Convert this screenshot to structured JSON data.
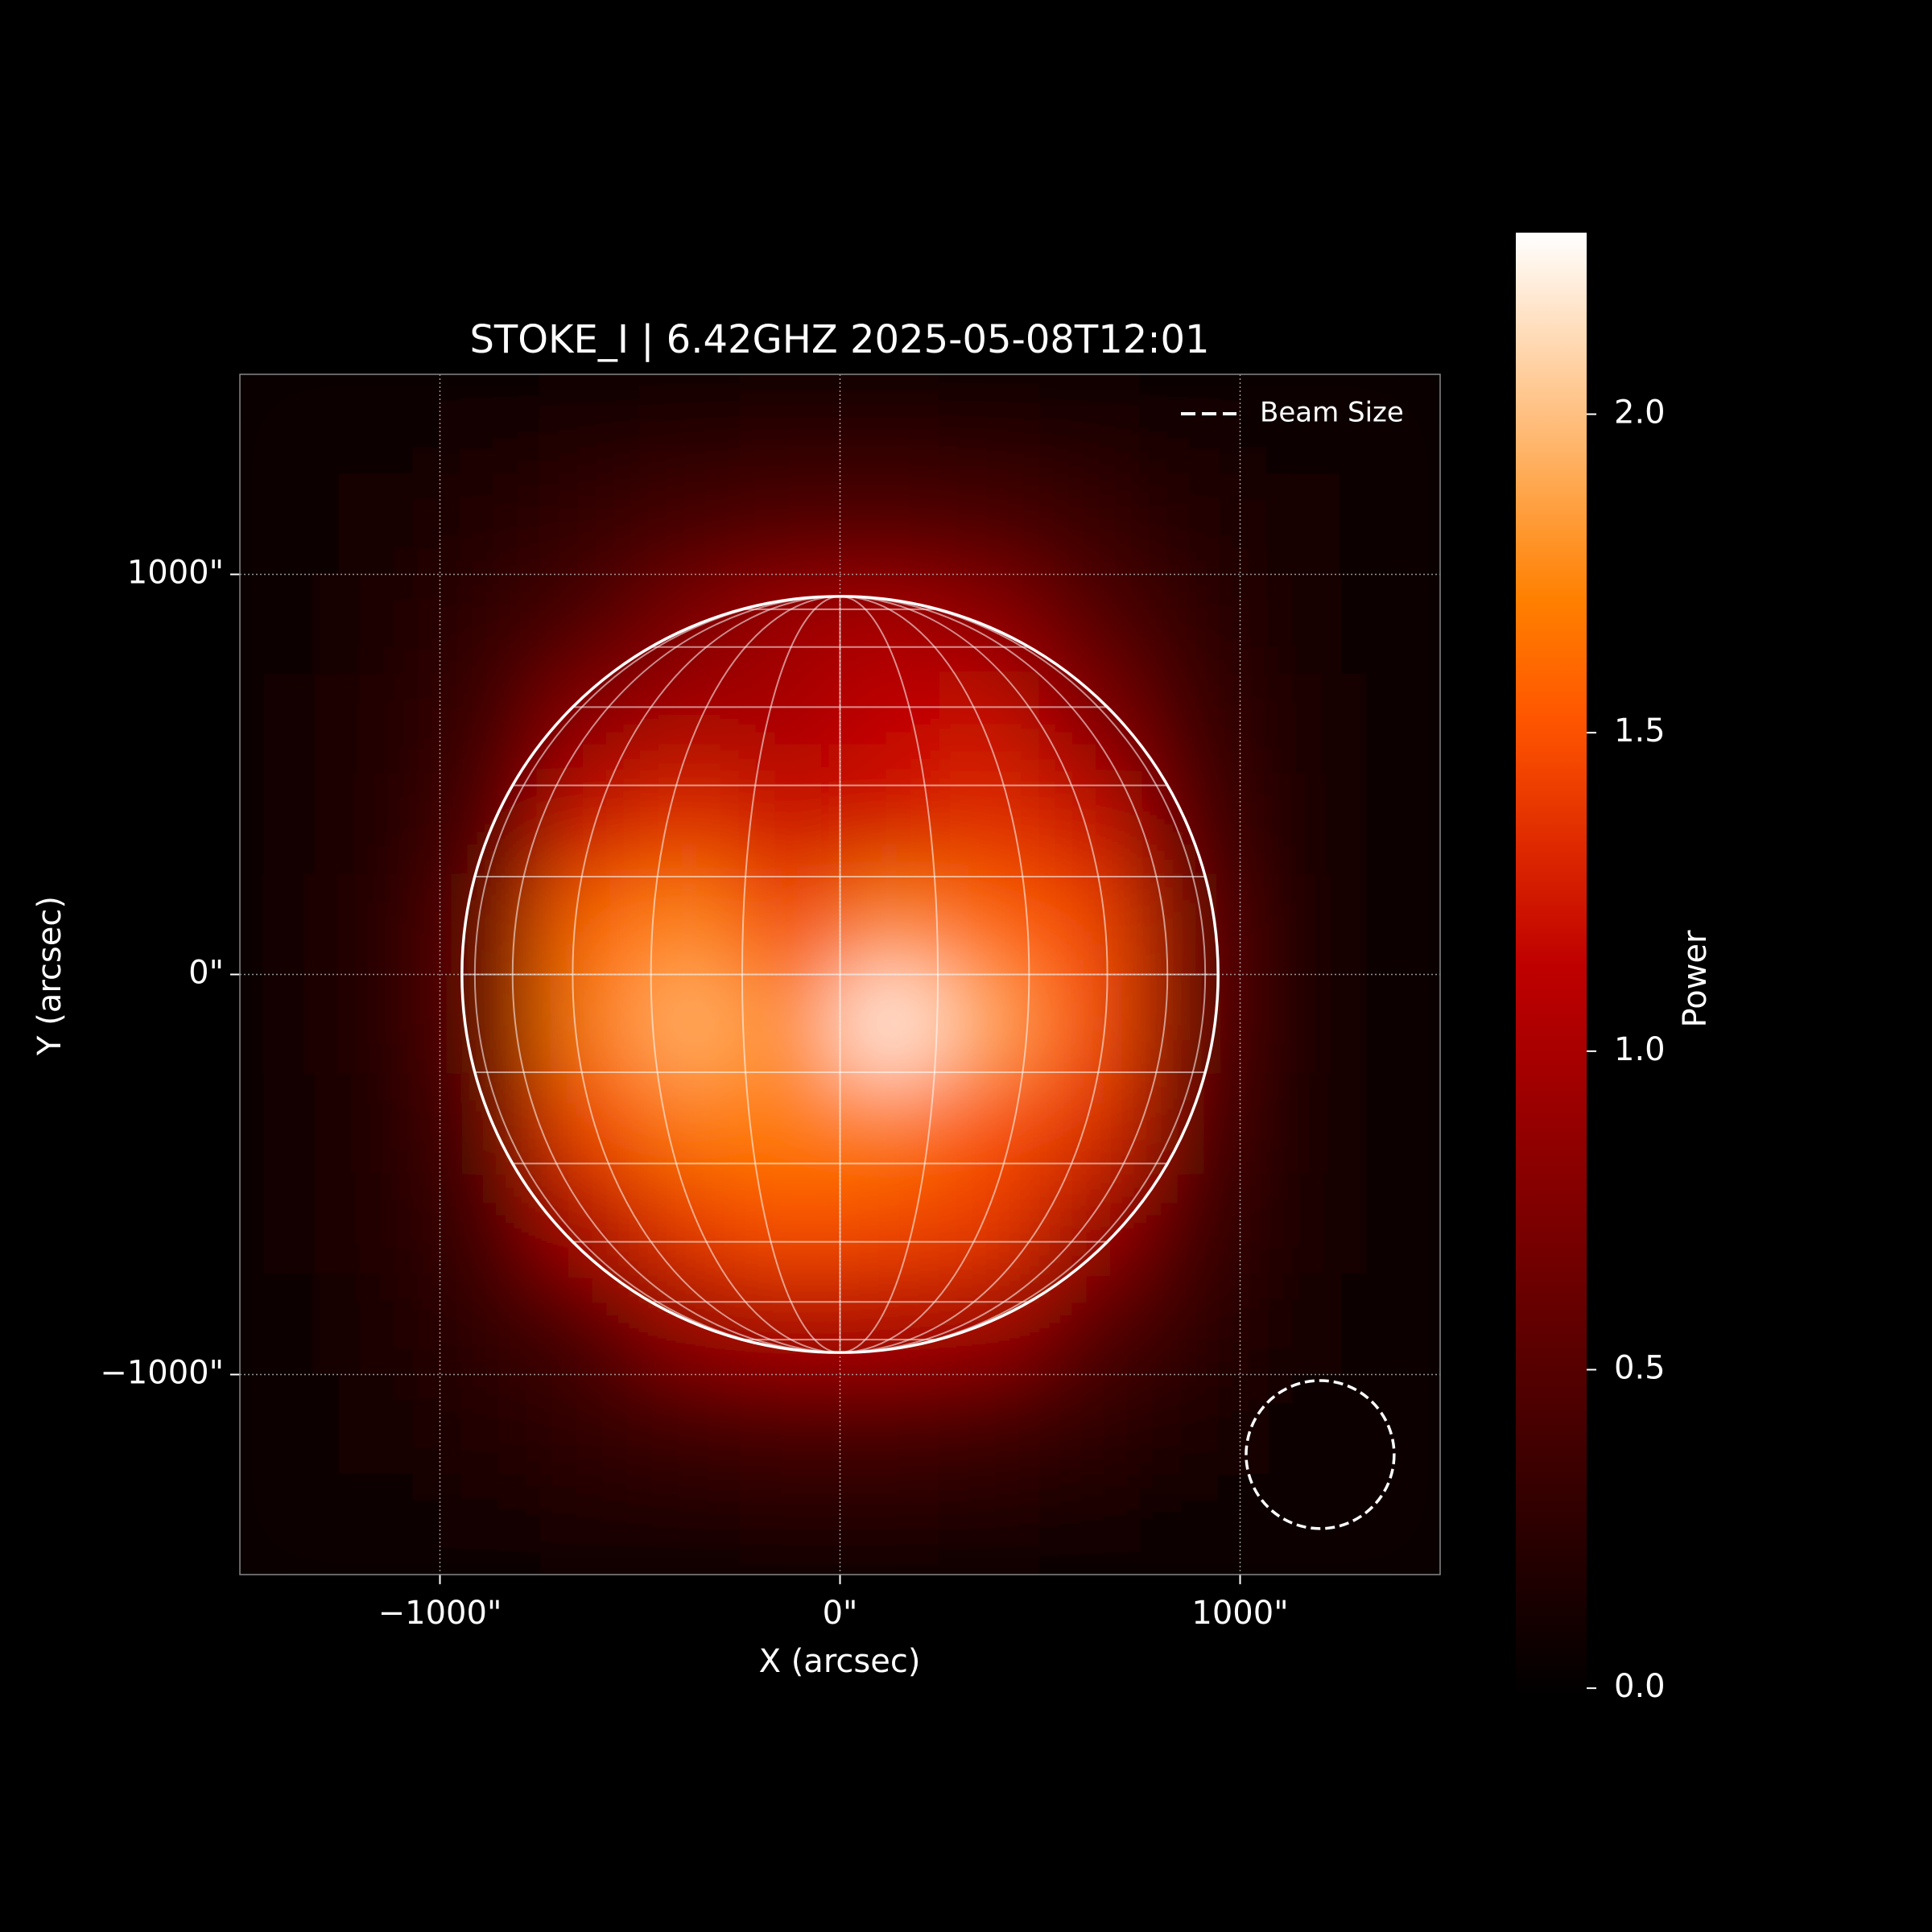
{
  "chart_data": {
    "type": "heatmap",
    "title": "STOKE_I | 6.42GHZ 2025-05-08T12:01",
    "xlabel": "X (arcsec)",
    "ylabel": "Y (arcsec)",
    "colorbar_label": "Power",
    "colormap": "gist_heat",
    "grid": true,
    "legend": "upper right",
    "xlim": [
      -1500,
      1500
    ],
    "ylim": [
      -1500,
      1500
    ],
    "xticks": [
      {
        "value": -1000,
        "label": "−1000\""
      },
      {
        "value": 0,
        "label": "0\""
      },
      {
        "value": 1000,
        "label": "1000\""
      }
    ],
    "yticks": [
      {
        "value": -1000,
        "label": "−1000\""
      },
      {
        "value": 0,
        "label": "0\""
      },
      {
        "value": 1000,
        "label": "1000\""
      }
    ],
    "clim": [
      -0.015,
      2.285
    ],
    "cticks": [
      {
        "value": 0,
        "label": "0.0"
      },
      0.5,
      {
        "value": 1,
        "label": "1.0"
      },
      1.5,
      {
        "value": 2,
        "label": "2.0"
      }
    ],
    "x": [
      -1375,
      -1125,
      -875,
      -625,
      -375,
      -125,
      125,
      375,
      625,
      875,
      1125,
      1375
    ],
    "y": [
      1375,
      1125,
      875,
      625,
      375,
      125,
      -125,
      -375,
      -625,
      -875,
      -1125,
      -1375
    ],
    "values": [
      [
        0.05,
        0.08,
        0.12,
        0.17,
        0.2,
        0.22,
        0.22,
        0.2,
        0.16,
        0.1,
        0.06,
        0.03
      ],
      [
        0.07,
        0.12,
        0.2,
        0.3,
        0.4,
        0.45,
        0.45,
        0.42,
        0.32,
        0.2,
        0.1,
        0.05
      ],
      [
        0.08,
        0.15,
        0.28,
        0.45,
        0.75,
        0.95,
        1.0,
        0.85,
        0.5,
        0.28,
        0.12,
        0.05
      ],
      [
        0.1,
        0.18,
        0.35,
        0.85,
        1.0,
        1.0,
        1.15,
        1.2,
        0.8,
        0.35,
        0.14,
        0.06
      ],
      [
        0.1,
        0.2,
        0.45,
        1.2,
        1.35,
        1.2,
        1.25,
        1.35,
        1.2,
        0.45,
        0.15,
        0.06
      ],
      [
        0.12,
        0.22,
        0.6,
        1.6,
        1.75,
        1.45,
        1.75,
        1.6,
        1.45,
        0.6,
        0.16,
        0.06
      ],
      [
        0.12,
        0.22,
        0.6,
        1.7,
        1.95,
        1.75,
        2.25,
        1.9,
        1.5,
        0.6,
        0.16,
        0.06
      ],
      [
        0.11,
        0.2,
        0.5,
        1.45,
        1.7,
        1.7,
        1.7,
        1.5,
        1.35,
        0.5,
        0.15,
        0.06
      ],
      [
        0.1,
        0.18,
        0.38,
        1.05,
        1.4,
        1.5,
        1.45,
        1.4,
        0.95,
        0.38,
        0.14,
        0.06
      ],
      [
        0.08,
        0.15,
        0.28,
        0.45,
        0.9,
        1.05,
        1.05,
        0.95,
        0.5,
        0.28,
        0.12,
        0.05
      ],
      [
        0.06,
        0.11,
        0.18,
        0.28,
        0.35,
        0.4,
        0.4,
        0.35,
        0.27,
        0.17,
        0.09,
        0.04
      ],
      [
        0.04,
        0.07,
        0.1,
        0.14,
        0.17,
        0.18,
        0.18,
        0.16,
        0.13,
        0.09,
        0.05,
        0.03
      ]
    ],
    "solar_radius": 945,
    "grid_spacing_deg": 15,
    "beam": {
      "label": "Beam Size",
      "center": [
        1200,
        -1200
      ],
      "radius": 185
    }
  }
}
